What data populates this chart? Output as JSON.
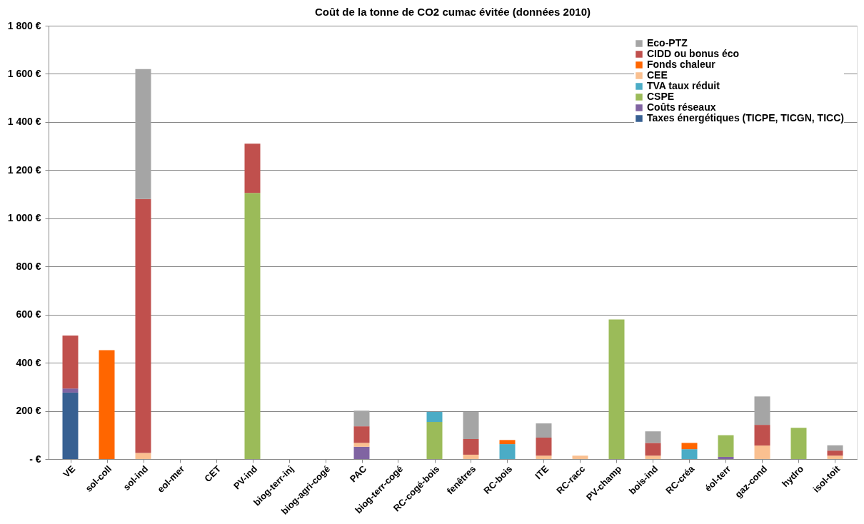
{
  "chart_data": {
    "type": "bar",
    "stacked": true,
    "title": "Coût de la tonne de CO2 cumac évitée (données 2010)",
    "categories": [
      "VE",
      "sol-coll",
      "sol-ind",
      "eol-mer",
      "CET",
      "PV-ind",
      "biog-terr-inj",
      "biog-agri-cogé",
      "PAC",
      "biog-terr-cogé",
      "RC-cogé-bois",
      "fenêtres",
      "RC-bois",
      "ITE",
      "RC-racc",
      "PV-champ",
      "bois-ind",
      "RC-créa",
      "éol-terr",
      "gaz-cond",
      "hydro",
      "isol-toit"
    ],
    "series": [
      {
        "name": "Taxes énergétiques (TICPE, TICGN, TICC)",
        "color": "#376092",
        "values": [
          276,
          null,
          null,
          null,
          null,
          null,
          null,
          null,
          null,
          null,
          null,
          null,
          null,
          null,
          null,
          null,
          null,
          null,
          null,
          null,
          null,
          null
        ]
      },
      {
        "name": "Coûts réseaux",
        "color": "#8064a2",
        "values": [
          17,
          null,
          null,
          null,
          null,
          null,
          null,
          null,
          51,
          null,
          null,
          null,
          null,
          null,
          null,
          null,
          null,
          null,
          9,
          null,
          null,
          null
        ]
      },
      {
        "name": "CSPE",
        "color": "#9bbb59",
        "values": [
          null,
          null,
          null,
          null,
          null,
          1105,
          null,
          null,
          null,
          null,
          154,
          null,
          null,
          null,
          null,
          580,
          null,
          null,
          90,
          null,
          130,
          null
        ]
      },
      {
        "name": "TVA taux réduit",
        "color": "#4bacc6",
        "values": [
          null,
          null,
          null,
          null,
          null,
          null,
          null,
          null,
          null,
          null,
          42,
          null,
          62,
          null,
          null,
          null,
          null,
          41,
          null,
          null,
          null,
          null
        ]
      },
      {
        "name": "CEE",
        "color": "#fac090",
        "values": [
          null,
          null,
          25,
          null,
          null,
          null,
          null,
          null,
          16,
          null,
          null,
          18,
          null,
          14,
          14,
          null,
          14,
          null,
          null,
          56,
          null,
          14
        ]
      },
      {
        "name": "Fonds chaleur",
        "color": "#ff6600",
        "values": [
          null,
          452,
          null,
          null,
          null,
          null,
          null,
          null,
          null,
          null,
          null,
          null,
          17,
          null,
          null,
          null,
          null,
          26,
          null,
          null,
          null,
          null
        ]
      },
      {
        "name": "CIDD ou bonus éco",
        "color": "#c0504d",
        "values": [
          220,
          null,
          1055,
          null,
          null,
          205,
          null,
          null,
          69,
          null,
          null,
          65,
          null,
          75,
          null,
          null,
          53,
          null,
          null,
          86,
          null,
          21
        ]
      },
      {
        "name": "Eco-PTZ",
        "color": "#a5a5a5",
        "values": [
          null,
          null,
          540,
          null,
          null,
          null,
          null,
          null,
          65,
          null,
          null,
          113,
          null,
          59,
          null,
          null,
          48,
          null,
          null,
          118,
          null,
          22
        ]
      }
    ],
    "ylim": [
      0,
      1800
    ],
    "yticks": [
      {
        "value": 0,
        "label": "- €"
      },
      {
        "value": 200,
        "label": "200 €"
      },
      {
        "value": 400,
        "label": "400 €"
      },
      {
        "value": 600,
        "label": "600 €"
      },
      {
        "value": 800,
        "label": "800 €"
      },
      {
        "value": 1000,
        "label": "1 000 €"
      },
      {
        "value": 1200,
        "label": "1 200 €"
      },
      {
        "value": 1400,
        "label": "1 400 €"
      },
      {
        "value": 1600,
        "label": "1 600 €"
      },
      {
        "value": 1800,
        "label": "1 800 €"
      }
    ],
    "grid": "y",
    "legend": "top right"
  }
}
